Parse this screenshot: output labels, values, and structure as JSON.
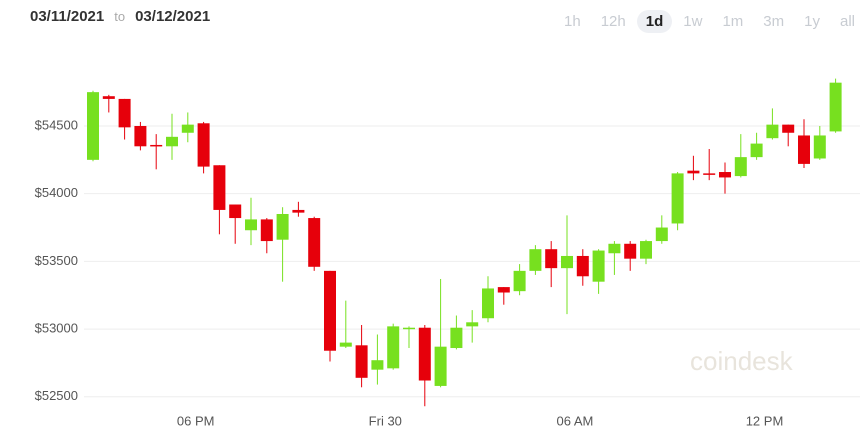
{
  "header": {
    "from": "03/11/2021",
    "to": "to",
    "until": "03/12/2021"
  },
  "ranges": [
    "1h",
    "12h",
    "1d",
    "1w",
    "1m",
    "3m",
    "1y",
    "all"
  ],
  "active_range": "1d",
  "watermark": "coindesk",
  "chart_data": {
    "type": "candlestick",
    "categories": [
      null,
      null,
      null,
      null,
      null,
      null,
      null,
      "06 PM",
      null,
      null,
      null,
      null,
      null,
      null,
      null,
      null,
      null,
      null,
      null,
      "Fri 30",
      null,
      null,
      null,
      null,
      null,
      null,
      null,
      null,
      null,
      null,
      null,
      "06 AM",
      null,
      null,
      null,
      null,
      null,
      null,
      null,
      null,
      null,
      null,
      null,
      "12 PM",
      null,
      null,
      null,
      null
    ],
    "open": [
      54250,
      54720,
      54700,
      54500,
      54360,
      54350,
      54450,
      54520,
      54210,
      53920,
      53730,
      53810,
      53660,
      53880,
      53820,
      53430,
      52870,
      52880,
      52700,
      52710,
      53000,
      53010,
      52580,
      52860,
      53020,
      53080,
      53310,
      53280,
      53430,
      53590,
      53450,
      53540,
      53350,
      53560,
      53630,
      53520,
      53650,
      53780,
      54170,
      54150,
      54160,
      54130,
      54270,
      54410,
      54510,
      54430,
      54260,
      54460
    ],
    "high": [
      54760,
      54730,
      54700,
      54530,
      54440,
      54590,
      54600,
      54530,
      54210,
      53920,
      53970,
      53820,
      53900,
      53940,
      53830,
      53430,
      53210,
      53030,
      52960,
      53040,
      53020,
      53030,
      53370,
      53100,
      53140,
      53390,
      53310,
      53480,
      53620,
      53650,
      53840,
      53590,
      53590,
      53650,
      53650,
      53660,
      53840,
      54160,
      54280,
      54330,
      54230,
      54440,
      54450,
      54630,
      54510,
      54550,
      54500,
      54850
    ],
    "low": [
      54240,
      54600,
      54400,
      54320,
      54180,
      54250,
      54380,
      54150,
      53700,
      53630,
      53620,
      53560,
      53350,
      53830,
      53430,
      52760,
      52860,
      52570,
      52590,
      52700,
      52860,
      52430,
      52570,
      52850,
      52900,
      53050,
      53180,
      53250,
      53400,
      53310,
      53110,
      53320,
      53260,
      53400,
      53430,
      53480,
      53630,
      53730,
      54100,
      54100,
      54000,
      54120,
      54250,
      54400,
      54350,
      54190,
      54250,
      54450
    ],
    "close": [
      54750,
      54700,
      54490,
      54350,
      54350,
      54420,
      54510,
      54200,
      53880,
      53820,
      53810,
      53650,
      53850,
      53860,
      53460,
      52840,
      52900,
      52640,
      52770,
      53020,
      53010,
      52620,
      52870,
      53010,
      53050,
      53300,
      53270,
      53430,
      53590,
      53450,
      53540,
      53390,
      53580,
      53630,
      53520,
      53650,
      53750,
      54150,
      54150,
      54140,
      54120,
      54270,
      54370,
      54510,
      54450,
      54220,
      54430,
      54820
    ],
    "up_color": "#77e01f",
    "down_color": "#e6000b",
    "ylim": [
      52400,
      55000
    ],
    "yticks": [
      {
        "value": 52500,
        "label": "$52500"
      },
      {
        "value": 53000,
        "label": "$53000"
      },
      {
        "value": 53500,
        "label": "$53500"
      },
      {
        "value": 54000,
        "label": "$54000"
      },
      {
        "value": 54500,
        "label": "$54500"
      }
    ],
    "grid": true
  }
}
